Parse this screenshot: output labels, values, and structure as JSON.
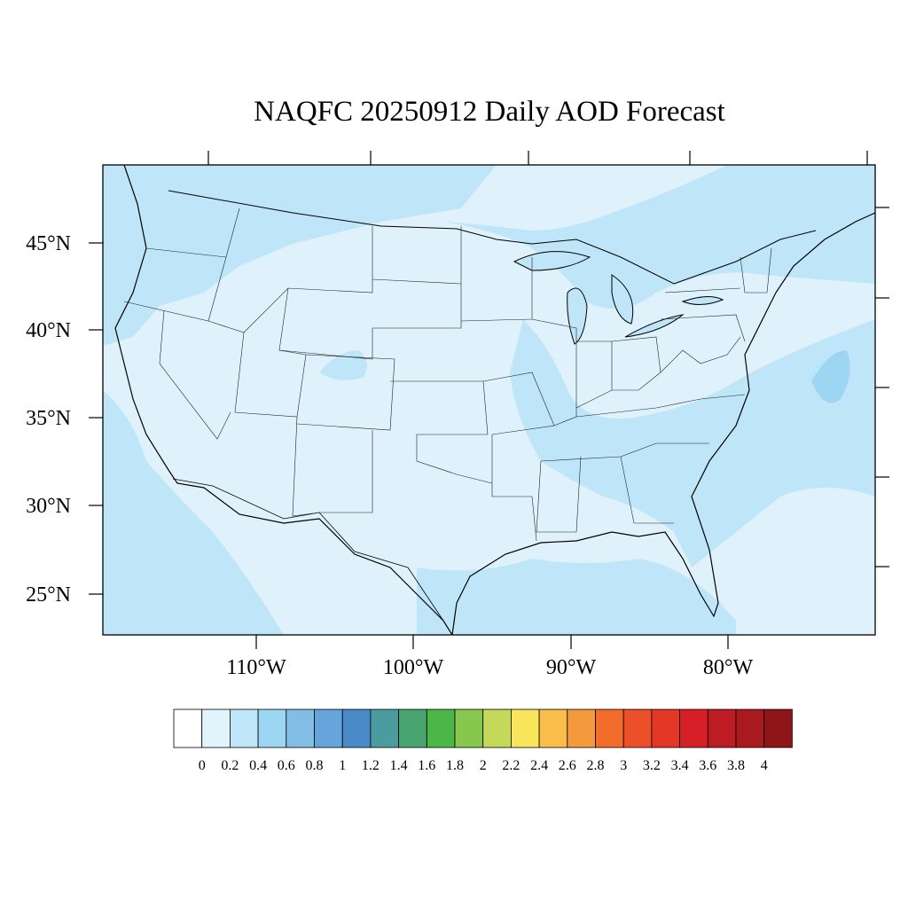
{
  "title": "NAQFC 20250912 Daily AOD Forecast",
  "map": {
    "region": "contiguous United States",
    "projection": "Lambert conformal",
    "lat_labels": [
      "45°N",
      "40°N",
      "35°N",
      "30°N",
      "25°N"
    ],
    "lon_labels": [
      "110°W",
      "100°W",
      "90°W",
      "80°W"
    ],
    "background_value_range": [
      0,
      0.2
    ],
    "elevated_regions": [
      {
        "area": "Pacific Northwest and northern Rockies",
        "range": [
          0.2,
          0.4
        ]
      },
      {
        "area": "Great Lakes and upper Midwest",
        "range": [
          0.2,
          0.4
        ]
      },
      {
        "area": "Mississippi valley and Southeast",
        "range": [
          0.2,
          0.4
        ]
      },
      {
        "area": "Gulf of Mexico",
        "range": [
          0.2,
          0.4
        ]
      },
      {
        "area": "Western Atlantic offshore",
        "range": [
          0.4,
          0.6
        ]
      }
    ]
  },
  "colorbar": {
    "labels": [
      "0",
      "0.2",
      "0.4",
      "0.6",
      "0.8",
      "1",
      "1.2",
      "1.4",
      "1.6",
      "1.8",
      "2",
      "2.2",
      "2.4",
      "2.6",
      "2.8",
      "3",
      "3.2",
      "3.4",
      "3.6",
      "3.8",
      "4"
    ],
    "colors": [
      "#ffffff",
      "#e1f3fb",
      "#bfe6f8",
      "#9dd6f3",
      "#82bde6",
      "#66a5db",
      "#4a8ac8",
      "#4a9c9e",
      "#48a56f",
      "#4cb648",
      "#88c74e",
      "#c4d95a",
      "#f9e55c",
      "#f8be48",
      "#f59a3c",
      "#f26d2c",
      "#ec5029",
      "#e33826",
      "#d71f27",
      "#be1c23",
      "#a91a1e",
      "#8f1519"
    ]
  }
}
